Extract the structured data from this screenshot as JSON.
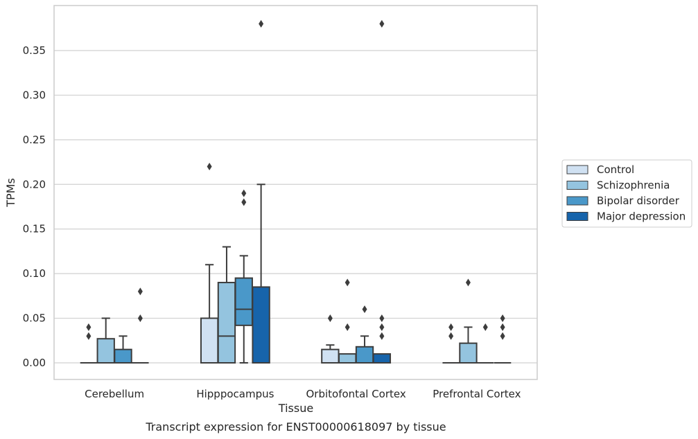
{
  "chart_data": {
    "type": "box",
    "title": "Transcript expression for ENST00000618097 by tissue",
    "xlabel": "Tissue",
    "ylabel": "TPMs",
    "ylim": [
      -0.018,
      0.398
    ],
    "yticks": [
      "0.00",
      "0.05",
      "0.10",
      "0.15",
      "0.20",
      "0.25",
      "0.30",
      "0.35"
    ],
    "grid": "horizontal",
    "legend_position": "right",
    "categories": [
      "Cerebellum",
      "Hipppocampus",
      "Orbitofontal Cortex",
      "Prefrontal Cortex"
    ],
    "series": [
      {
        "name": "Control",
        "color": "#d0e1f2",
        "boxes": [
          {
            "q1": 0,
            "median": 0,
            "q3": 0,
            "whisker_low": 0,
            "whisker_high": 0,
            "outliers": [
              0.04,
              0.03
            ]
          },
          {
            "q1": 0,
            "median": 0,
            "q3": 0.05,
            "whisker_low": 0,
            "whisker_high": 0.11,
            "outliers": [
              0.22
            ]
          },
          {
            "q1": 0,
            "median": 0,
            "q3": 0.015,
            "whisker_low": 0,
            "whisker_high": 0.02,
            "outliers": [
              0.05
            ]
          },
          {
            "q1": 0,
            "median": 0,
            "q3": 0,
            "whisker_low": 0,
            "whisker_high": 0,
            "outliers": [
              0.04,
              0.03
            ]
          }
        ]
      },
      {
        "name": "Schizophrenia",
        "color": "#94c4df",
        "boxes": [
          {
            "q1": 0,
            "median": 0,
            "q3": 0.027,
            "whisker_low": 0,
            "whisker_high": 0.05,
            "outliers": []
          },
          {
            "q1": 0,
            "median": 0.03,
            "q3": 0.09,
            "whisker_low": 0,
            "whisker_high": 0.13,
            "outliers": []
          },
          {
            "q1": 0,
            "median": 0,
            "q3": 0.01,
            "whisker_low": 0,
            "whisker_high": 0.01,
            "outliers": [
              0.09,
              0.04
            ]
          },
          {
            "q1": 0,
            "median": 0,
            "q3": 0.022,
            "whisker_low": 0,
            "whisker_high": 0.04,
            "outliers": [
              0.09
            ]
          }
        ]
      },
      {
        "name": "Bipolar disorder",
        "color": "#4a98c9",
        "boxes": [
          {
            "q1": 0,
            "median": 0,
            "q3": 0.015,
            "whisker_low": 0,
            "whisker_high": 0.03,
            "outliers": []
          },
          {
            "q1": 0.042,
            "median": 0.06,
            "q3": 0.095,
            "whisker_low": 0,
            "whisker_high": 0.12,
            "outliers": [
              0.19,
              0.18
            ]
          },
          {
            "q1": 0,
            "median": 0,
            "q3": 0.018,
            "whisker_low": 0,
            "whisker_high": 0.03,
            "outliers": [
              0.06
            ]
          },
          {
            "q1": 0,
            "median": 0,
            "q3": 0,
            "whisker_low": 0,
            "whisker_high": 0,
            "outliers": [
              0.04
            ]
          }
        ]
      },
      {
        "name": "Major depression",
        "color": "#1764ab",
        "boxes": [
          {
            "q1": 0,
            "median": 0,
            "q3": 0,
            "whisker_low": 0,
            "whisker_high": 0,
            "outliers": [
              0.08,
              0.05
            ]
          },
          {
            "q1": 0,
            "median": 0,
            "q3": 0.085,
            "whisker_low": 0,
            "whisker_high": 0.2,
            "outliers": [
              0.38
            ]
          },
          {
            "q1": 0,
            "median": 0,
            "q3": 0.01,
            "whisker_low": 0,
            "whisker_high": 0.01,
            "outliers": [
              0.38,
              0.05,
              0.04,
              0.03
            ]
          },
          {
            "q1": 0,
            "median": 0,
            "q3": 0,
            "whisker_low": 0,
            "whisker_high": 0,
            "outliers": [
              0.05,
              0.04,
              0.03
            ]
          }
        ]
      }
    ]
  }
}
